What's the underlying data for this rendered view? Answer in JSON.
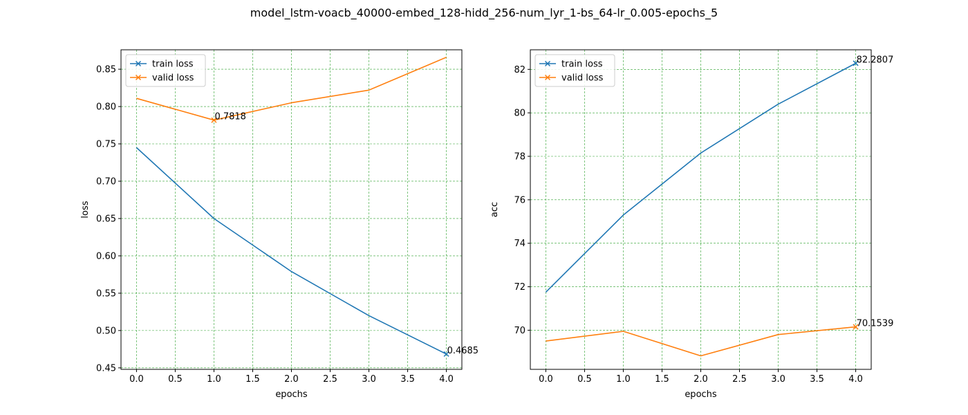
{
  "figure_title": "model_lstm-voacb_40000-embed_128-hidd_256-num_lyr_1-bs_64-lr_0.005-epochs_5",
  "colors": {
    "series1": "#1f77b4",
    "series2": "#ff7f0e",
    "grid": "#2ca02c"
  },
  "chart_data": [
    {
      "type": "line",
      "title": "",
      "xlabel": "epochs",
      "ylabel": "loss",
      "xlim": [
        -0.2,
        4.2
      ],
      "ylim": [
        0.448,
        0.876
      ],
      "xticks": [
        0.0,
        0.5,
        1.0,
        1.5,
        2.0,
        2.5,
        3.0,
        3.5,
        4.0
      ],
      "xtick_labels": [
        "0.0",
        "0.5",
        "1.0",
        "1.5",
        "2.0",
        "2.5",
        "3.0",
        "3.5",
        "4.0"
      ],
      "yticks": [
        0.45,
        0.5,
        0.55,
        0.6,
        0.65,
        0.7,
        0.75,
        0.8,
        0.85
      ],
      "ytick_labels": [
        "0.45",
        "0.50",
        "0.55",
        "0.60",
        "0.65",
        "0.70",
        "0.75",
        "0.80",
        "0.85"
      ],
      "grid": true,
      "legend_position": "top-left",
      "x": [
        0,
        1,
        2,
        3,
        4
      ],
      "series": [
        {
          "name": "train loss",
          "values": [
            0.745,
            0.65,
            0.579,
            0.52,
            0.4685
          ],
          "marked_index": 4,
          "annotation": "0.4685"
        },
        {
          "name": "valid loss",
          "values": [
            0.811,
            0.7818,
            0.805,
            0.822,
            0.866
          ],
          "marked_index": 1,
          "annotation": "0.7818"
        }
      ]
    },
    {
      "type": "line",
      "title": "",
      "xlabel": "epochs",
      "ylabel": "acc",
      "xlim": [
        -0.2,
        4.2
      ],
      "ylim": [
        68.2,
        82.9
      ],
      "xticks": [
        0.0,
        0.5,
        1.0,
        1.5,
        2.0,
        2.5,
        3.0,
        3.5,
        4.0
      ],
      "xtick_labels": [
        "0.0",
        "0.5",
        "1.0",
        "1.5",
        "2.0",
        "2.5",
        "3.0",
        "3.5",
        "4.0"
      ],
      "yticks": [
        70,
        72,
        74,
        76,
        78,
        80,
        82
      ],
      "ytick_labels": [
        "70",
        "72",
        "74",
        "76",
        "78",
        "80",
        "82"
      ],
      "grid": true,
      "legend_position": "top-left",
      "x": [
        0,
        1,
        2,
        3,
        4
      ],
      "series": [
        {
          "name": "train loss",
          "values": [
            71.75,
            75.3,
            78.15,
            80.4,
            82.2807
          ],
          "marked_index": 4,
          "annotation": "82.2807"
        },
        {
          "name": "valid loss",
          "values": [
            69.5,
            69.95,
            68.82,
            69.8,
            70.1539
          ],
          "marked_index": 4,
          "annotation": "70.1539"
        }
      ]
    }
  ]
}
